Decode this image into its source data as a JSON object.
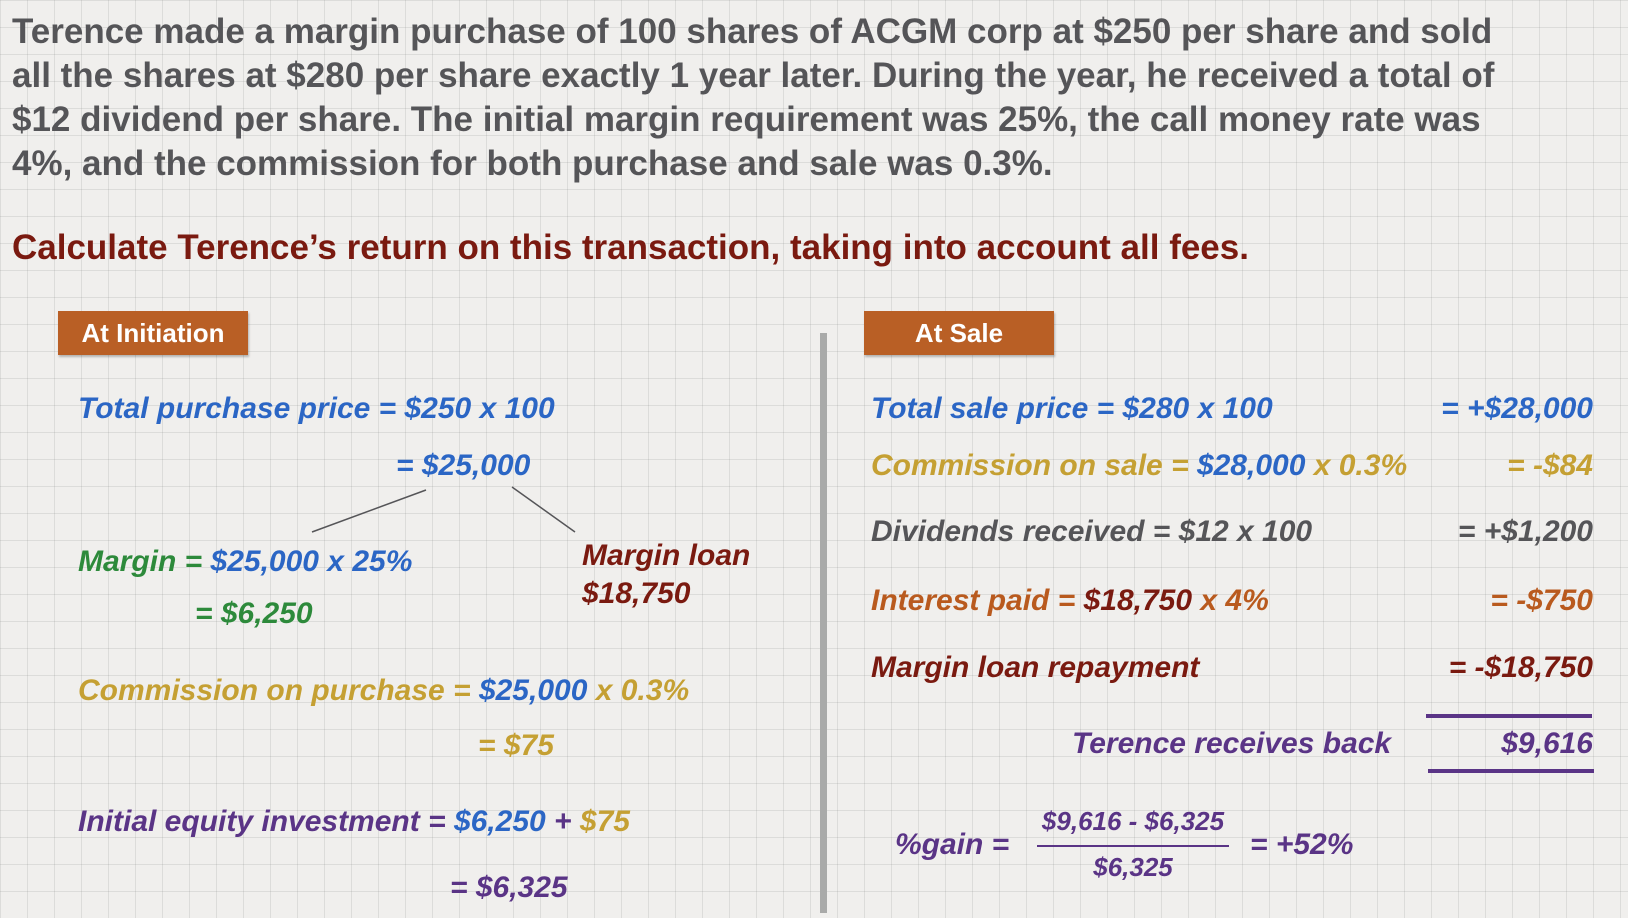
{
  "problem": {
    "lines": [
      "Terence made a margin purchase of 100 shares of ACGM corp at $250 per share and sold",
      "all the shares at $280 per share exactly 1 year later.  During the year, he received a total of",
      "$12 dividend per share.  The initial margin requirement was 25%, the call money rate was",
      "4%, and the commission for both purchase and sale was 0.3%."
    ],
    "question": "Calculate Terence’s return on this transaction, taking into account all fees."
  },
  "initiation": {
    "tag": "At Initiation",
    "purchase_label": "Total purchase price = $250 x 100",
    "purchase_result": "= $25,000",
    "margin_label": "Margin = ",
    "margin_calc": "$25,000 x 25%",
    "margin_result": "= $6,250",
    "loan_label": "Margin loan",
    "loan_value": "$18,750",
    "commission_label": "Commission on purchase = ",
    "commission_base": "$25,000",
    "commission_rate": " x 0.3%",
    "commission_result": "= $75",
    "equity_label": "Initial equity investment = ",
    "equity_part1": "$6,250",
    "equity_plus": " + ",
    "equity_part2": "$75",
    "equity_result": "= $6,325"
  },
  "sale": {
    "tag": "At Sale",
    "sale_price_label": "Total sale price = $280 x 100",
    "sale_price_value": "= +$28,000",
    "commission_label": "Commission on sale = ",
    "commission_base": "$28,000",
    "commission_rate": " x 0.3%",
    "commission_value": "= -$84",
    "dividends_label": "Dividends received = $12 x 100",
    "dividends_value": "= +$1,200",
    "interest_label": "Interest paid = ",
    "interest_calc": "$18,750",
    "interest_rate": " x 4%",
    "interest_value": "= -$750",
    "repayment_label": "Margin loan repayment",
    "repayment_value": "= -$18,750",
    "receives_label": "Terence receives back",
    "receives_value": "$9,616",
    "gain_label": "%gain =",
    "gain_numerator": "$9,616 - $6,325",
    "gain_denominator": "$6,325",
    "gain_result": "= +52%"
  },
  "colors": {
    "blue": "#2b66c5",
    "green": "#2d8a3b",
    "gold": "#c5a033",
    "maroon": "#7a1a10",
    "gray": "#555558",
    "orange": "#b95a1e",
    "purple": "#5a3486",
    "tag": "#b95f25"
  }
}
